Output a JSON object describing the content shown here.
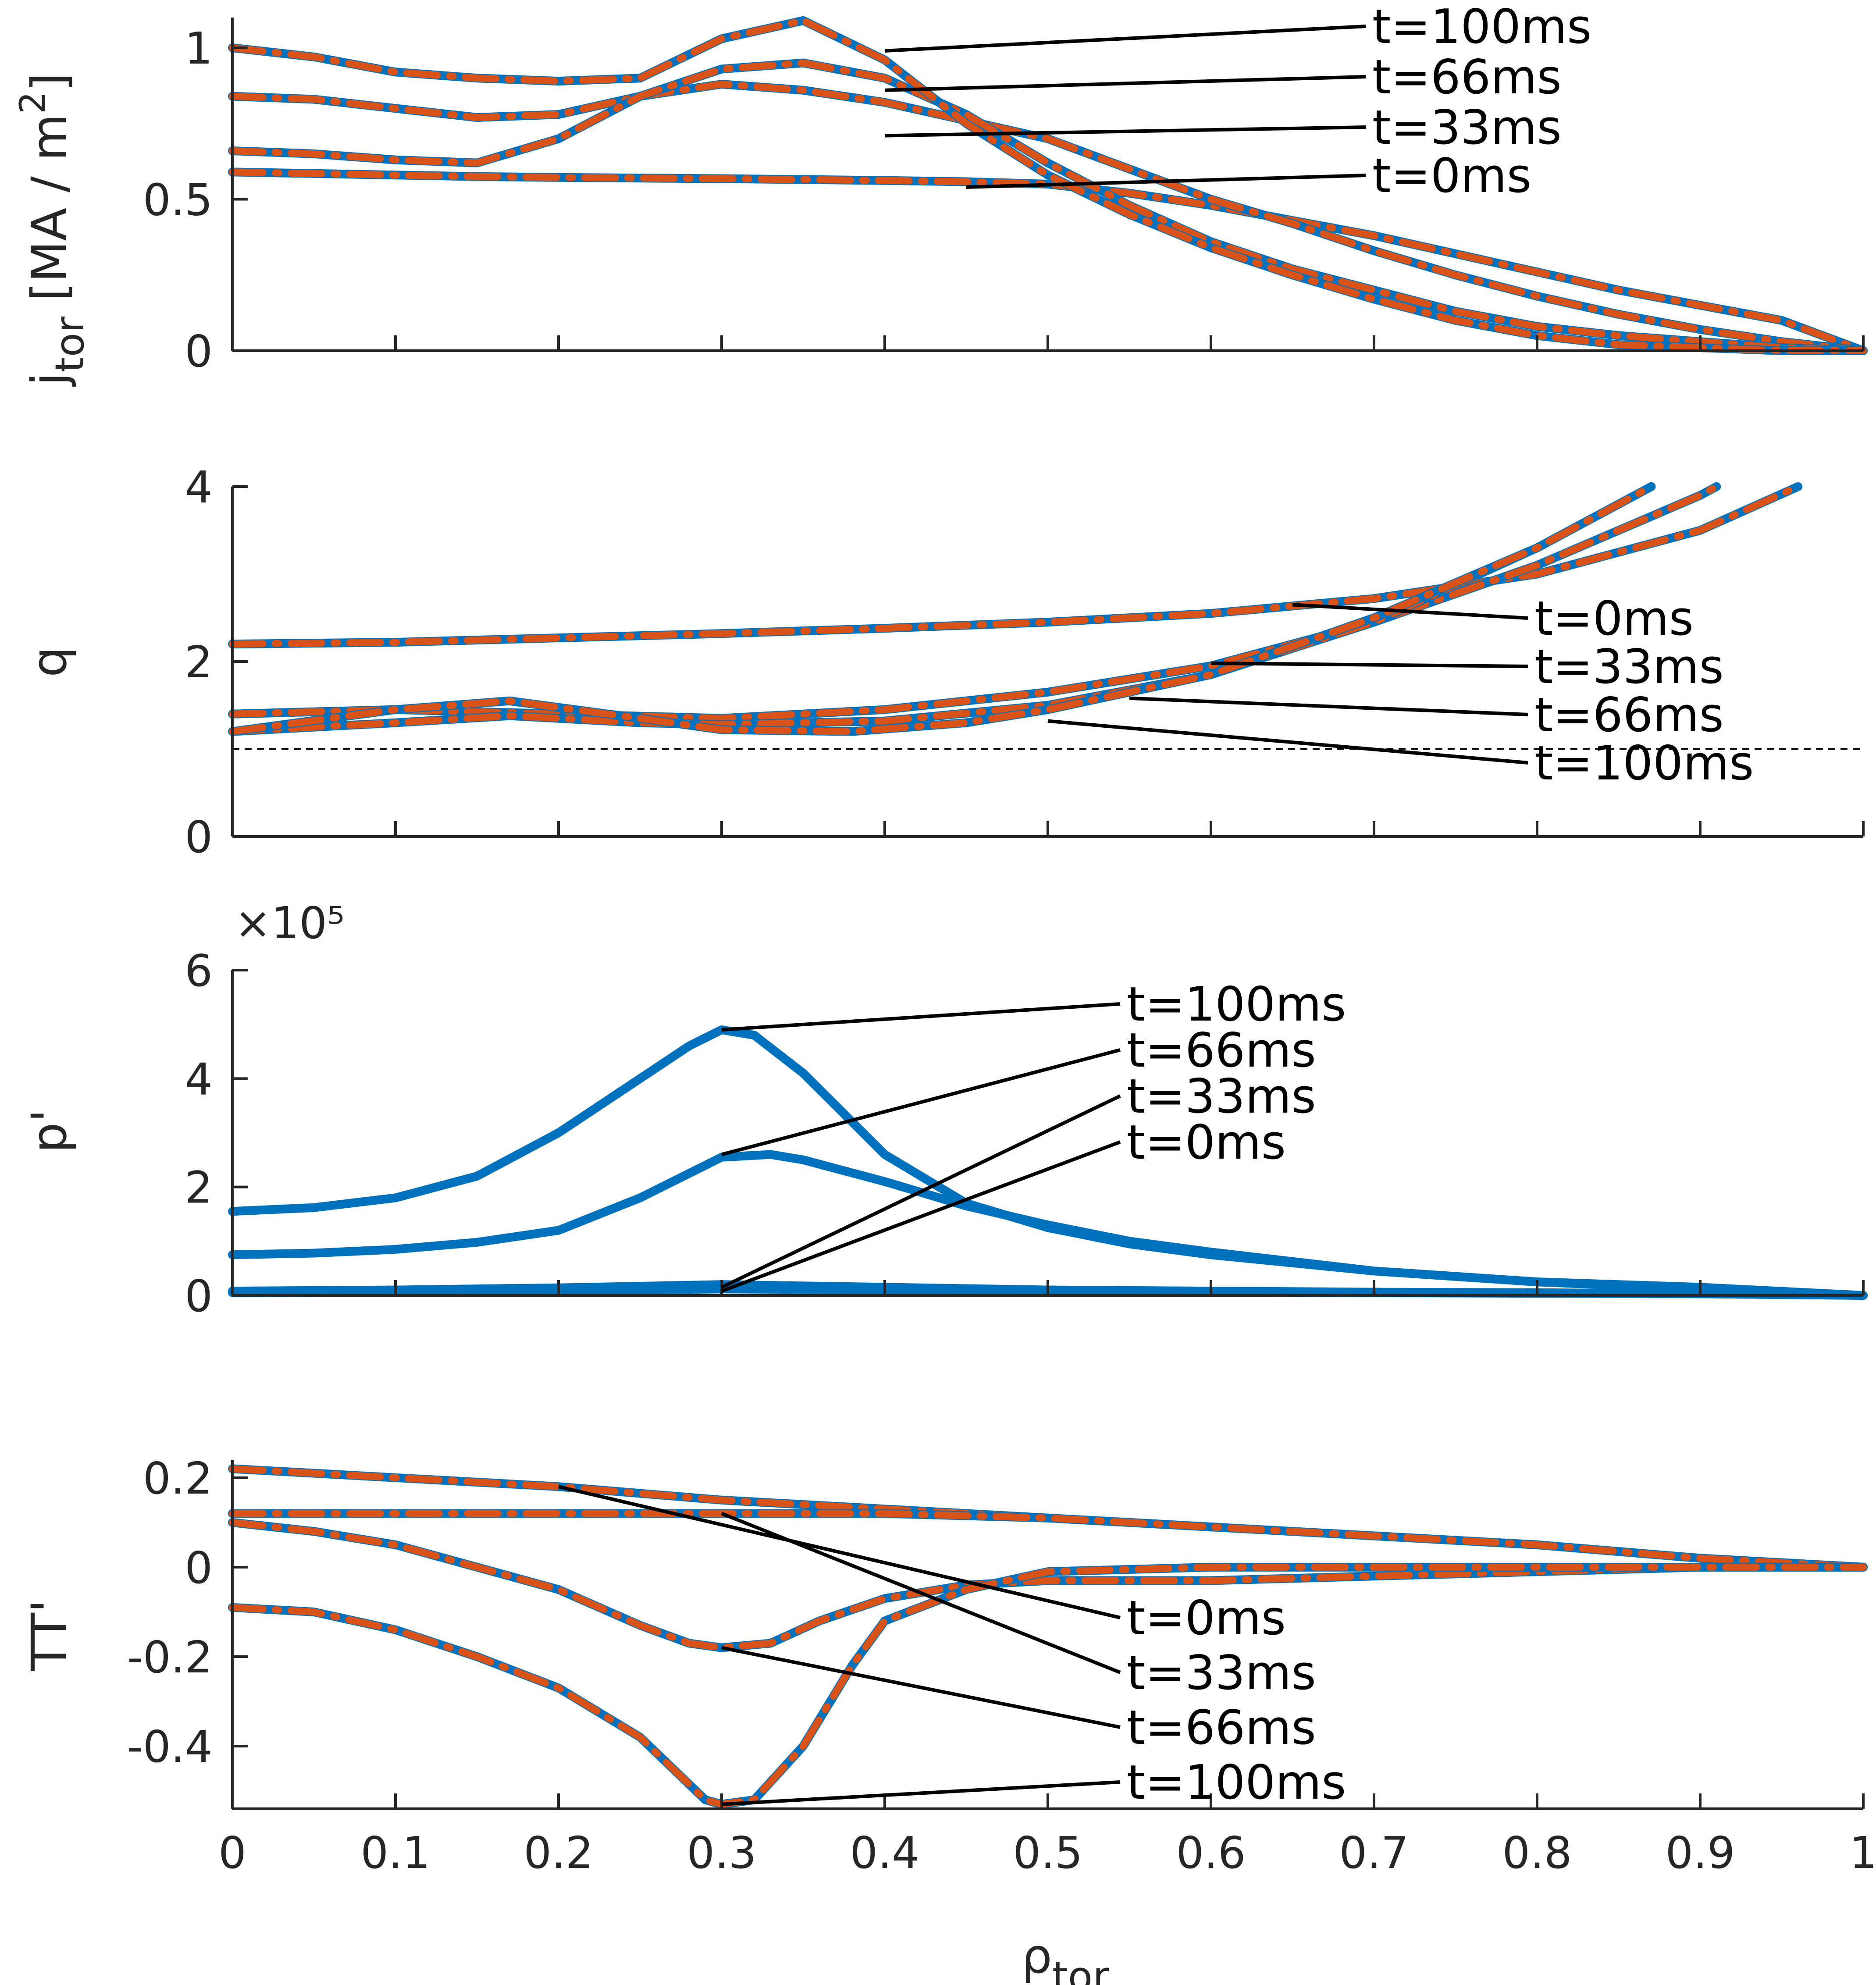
{
  "chart_data": [
    {
      "type": "line",
      "ylabel": "j_tor [MA / m^2]",
      "ylabel_parts": {
        "main": "j",
        "sub": "tor",
        "rest": " [MA / m",
        "sup": "2",
        "end": "]"
      },
      "xlim": [
        0,
        1
      ],
      "ylim": [
        0,
        1.1
      ],
      "yticks": [
        "0",
        "0.5",
        "1"
      ],
      "ytick_values": [
        0,
        0.5,
        1
      ],
      "series": [
        {
          "name": "t=0ms",
          "x": [
            0,
            0.05,
            0.1,
            0.15,
            0.2,
            0.25,
            0.3,
            0.35,
            0.4,
            0.45,
            0.5,
            0.55,
            0.6,
            0.65,
            0.7,
            0.75,
            0.8,
            0.85,
            0.9,
            0.95,
            1.0
          ],
          "y": [
            0.59,
            0.585,
            0.58,
            0.575,
            0.572,
            0.57,
            0.568,
            0.565,
            0.562,
            0.558,
            0.55,
            0.52,
            0.48,
            0.43,
            0.38,
            0.32,
            0.26,
            0.2,
            0.15,
            0.1,
            0.0
          ]
        },
        {
          "name": "t=33ms",
          "x": [
            0,
            0.05,
            0.1,
            0.15,
            0.2,
            0.25,
            0.3,
            0.35,
            0.4,
            0.45,
            0.5,
            0.55,
            0.6,
            0.65,
            0.7,
            0.75,
            0.8,
            0.85,
            0.9,
            0.95,
            1.0
          ],
          "y": [
            0.84,
            0.83,
            0.8,
            0.77,
            0.78,
            0.84,
            0.88,
            0.86,
            0.82,
            0.76,
            0.7,
            0.6,
            0.5,
            0.42,
            0.33,
            0.25,
            0.18,
            0.12,
            0.07,
            0.03,
            0.0
          ]
        },
        {
          "name": "t=66ms",
          "x": [
            0,
            0.05,
            0.1,
            0.15,
            0.2,
            0.25,
            0.3,
            0.35,
            0.4,
            0.45,
            0.5,
            0.55,
            0.6,
            0.65,
            0.7,
            0.75,
            0.8,
            0.85,
            0.9,
            0.95,
            1.0
          ],
          "y": [
            0.66,
            0.65,
            0.63,
            0.62,
            0.7,
            0.84,
            0.93,
            0.95,
            0.9,
            0.78,
            0.62,
            0.48,
            0.36,
            0.27,
            0.2,
            0.13,
            0.08,
            0.05,
            0.03,
            0.01,
            0.0
          ]
        },
        {
          "name": "t=100ms",
          "x": [
            0,
            0.05,
            0.1,
            0.15,
            0.2,
            0.25,
            0.3,
            0.35,
            0.4,
            0.45,
            0.5,
            0.55,
            0.6,
            0.65,
            0.7,
            0.75,
            0.8,
            0.85,
            0.9,
            0.95,
            1.0
          ],
          "y": [
            1.0,
            0.97,
            0.92,
            0.9,
            0.89,
            0.9,
            1.03,
            1.09,
            0.96,
            0.75,
            0.58,
            0.45,
            0.34,
            0.25,
            0.17,
            0.1,
            0.05,
            0.02,
            0.01,
            0.0,
            0.0
          ]
        }
      ],
      "annotations": [
        {
          "text": "t=100ms",
          "anchor": [
            0.4,
            0.99
          ]
        },
        {
          "text": "t=66ms",
          "anchor": [
            0.4,
            0.86
          ]
        },
        {
          "text": "t=33ms",
          "anchor": [
            0.4,
            0.71
          ]
        },
        {
          "text": "t=0ms",
          "anchor": [
            0.45,
            0.54
          ]
        }
      ]
    },
    {
      "type": "line",
      "ylabel": "q",
      "xlim": [
        0,
        1
      ],
      "ylim": [
        0,
        4
      ],
      "yticks": [
        "0",
        "2",
        "4"
      ],
      "ytick_values": [
        0,
        2,
        4
      ],
      "reference_line": {
        "y": 1,
        "style": "dashed"
      },
      "series": [
        {
          "name": "t=0ms",
          "x": [
            0,
            0.1,
            0.2,
            0.3,
            0.4,
            0.5,
            0.6,
            0.7,
            0.8,
            0.9,
            0.96
          ],
          "y": [
            2.2,
            2.22,
            2.27,
            2.32,
            2.38,
            2.45,
            2.55,
            2.72,
            3.0,
            3.5,
            4.0
          ]
        },
        {
          "name": "t=33ms",
          "x": [
            0,
            0.1,
            0.2,
            0.3,
            0.4,
            0.5,
            0.6,
            0.7,
            0.8,
            0.9,
            0.91
          ],
          "y": [
            1.4,
            1.45,
            1.4,
            1.35,
            1.45,
            1.65,
            1.95,
            2.45,
            3.1,
            3.9,
            4.0
          ]
        },
        {
          "name": "t=66ms",
          "x": [
            0,
            0.1,
            0.17,
            0.25,
            0.3,
            0.4,
            0.5,
            0.6,
            0.7,
            0.8,
            0.87
          ],
          "y": [
            1.2,
            1.3,
            1.38,
            1.3,
            1.28,
            1.32,
            1.5,
            1.85,
            2.45,
            3.3,
            4.0
          ]
        },
        {
          "name": "t=100ms",
          "x": [
            0,
            0.1,
            0.17,
            0.25,
            0.3,
            0.38,
            0.45,
            0.5,
            0.6,
            0.7,
            0.8,
            0.87
          ],
          "y": [
            1.2,
            1.45,
            1.55,
            1.35,
            1.22,
            1.2,
            1.3,
            1.45,
            1.85,
            2.5,
            3.3,
            4.0
          ]
        }
      ],
      "annotations": [
        {
          "text": "t=0ms",
          "anchor": [
            0.65,
            2.65
          ]
        },
        {
          "text": "t=33ms",
          "anchor": [
            0.6,
            1.98
          ]
        },
        {
          "text": "t=66ms",
          "anchor": [
            0.55,
            1.58
          ]
        },
        {
          "text": "t=100ms",
          "anchor": [
            0.5,
            1.32
          ]
        }
      ]
    },
    {
      "type": "line",
      "ylabel": "p'",
      "exponent_label": "×10⁵",
      "xlim": [
        0,
        1
      ],
      "ylim": [
        0,
        6
      ],
      "yticks": [
        "0",
        "2",
        "4",
        "6"
      ],
      "ytick_values": [
        0,
        2,
        4,
        6
      ],
      "series": [
        {
          "name": "t=0ms",
          "x": [
            0,
            0.1,
            0.2,
            0.3,
            0.4,
            0.5,
            0.6,
            0.7,
            0.8,
            0.9,
            1.0
          ],
          "y": [
            0.05,
            0.06,
            0.08,
            0.12,
            0.1,
            0.08,
            0.06,
            0.05,
            0.04,
            0.03,
            0.0
          ]
        },
        {
          "name": "t=33ms",
          "x": [
            0,
            0.1,
            0.2,
            0.3,
            0.4,
            0.5,
            0.6,
            0.7,
            0.8,
            0.9,
            1.0
          ],
          "y": [
            0.08,
            0.1,
            0.14,
            0.2,
            0.15,
            0.1,
            0.08,
            0.06,
            0.05,
            0.03,
            0.0
          ]
        },
        {
          "name": "t=66ms",
          "x": [
            0,
            0.05,
            0.1,
            0.15,
            0.2,
            0.25,
            0.3,
            0.33,
            0.35,
            0.4,
            0.45,
            0.5,
            0.55,
            0.6,
            0.7,
            0.8,
            0.9,
            1.0
          ],
          "y": [
            0.75,
            0.78,
            0.85,
            0.98,
            1.2,
            1.8,
            2.55,
            2.6,
            2.5,
            2.1,
            1.65,
            1.3,
            1.0,
            0.8,
            0.45,
            0.25,
            0.12,
            0.0
          ]
        },
        {
          "name": "t=100ms",
          "x": [
            0,
            0.05,
            0.1,
            0.15,
            0.2,
            0.22,
            0.25,
            0.28,
            0.3,
            0.32,
            0.35,
            0.4,
            0.45,
            0.5,
            0.55,
            0.6,
            0.7,
            0.8,
            0.9,
            1.0
          ],
          "y": [
            1.55,
            1.62,
            1.8,
            2.2,
            3.0,
            3.4,
            4.0,
            4.6,
            4.9,
            4.8,
            4.1,
            2.6,
            1.7,
            1.25,
            0.95,
            0.75,
            0.45,
            0.25,
            0.15,
            0.0
          ]
        }
      ],
      "annotations": [
        {
          "text": "t=100ms",
          "anchor": [
            0.3,
            4.9
          ]
        },
        {
          "text": "t=66ms",
          "anchor": [
            0.3,
            2.6
          ]
        },
        {
          "text": "t=33ms",
          "anchor": [
            0.3,
            0.15
          ]
        },
        {
          "text": "t=0ms",
          "anchor": [
            0.3,
            0.08
          ]
        }
      ]
    },
    {
      "type": "line",
      "ylabel": "TT'",
      "xlabel": "ρ_tor",
      "xlabel_parts": {
        "main": "ρ",
        "sub": "tor"
      },
      "xlim": [
        0,
        1
      ],
      "ylim": [
        -0.54,
        0.24
      ],
      "xticks": [
        "0",
        "0.1",
        "0.2",
        "0.3",
        "0.4",
        "0.5",
        "0.6",
        "0.7",
        "0.8",
        "0.9",
        "1"
      ],
      "xtick_values": [
        0,
        0.1,
        0.2,
        0.3,
        0.4,
        0.5,
        0.6,
        0.7,
        0.8,
        0.9,
        1.0
      ],
      "yticks": [
        "-0.4",
        "-0.2",
        "0",
        "0.2"
      ],
      "ytick_values": [
        -0.4,
        -0.2,
        0,
        0.2
      ],
      "series": [
        {
          "name": "t=0ms",
          "x": [
            0,
            0.1,
            0.2,
            0.3,
            0.4,
            0.5,
            0.6,
            0.7,
            0.8,
            0.9,
            1.0
          ],
          "y": [
            0.22,
            0.2,
            0.18,
            0.15,
            0.13,
            0.11,
            0.09,
            0.07,
            0.05,
            0.02,
            0.0
          ]
        },
        {
          "name": "t=33ms",
          "x": [
            0,
            0.1,
            0.2,
            0.3,
            0.4,
            0.5,
            0.6,
            0.7,
            0.8,
            0.9,
            1.0
          ],
          "y": [
            0.12,
            0.12,
            0.12,
            0.12,
            0.12,
            0.11,
            0.09,
            0.07,
            0.05,
            0.02,
            0.0
          ]
        },
        {
          "name": "t=66ms",
          "x": [
            0,
            0.05,
            0.1,
            0.15,
            0.2,
            0.25,
            0.28,
            0.3,
            0.33,
            0.36,
            0.4,
            0.45,
            0.5,
            0.6,
            0.7,
            0.8,
            0.9,
            1.0
          ],
          "y": [
            0.1,
            0.08,
            0.05,
            0.0,
            -0.05,
            -0.13,
            -0.17,
            -0.18,
            -0.17,
            -0.12,
            -0.07,
            -0.04,
            -0.03,
            -0.03,
            -0.02,
            -0.01,
            0.0,
            0.0
          ]
        },
        {
          "name": "t=100ms",
          "x": [
            0,
            0.05,
            0.1,
            0.15,
            0.2,
            0.25,
            0.27,
            0.29,
            0.3,
            0.32,
            0.35,
            0.38,
            0.4,
            0.45,
            0.5,
            0.6,
            0.7,
            0.8,
            0.9,
            1.0
          ],
          "y": [
            -0.09,
            -0.1,
            -0.14,
            -0.2,
            -0.27,
            -0.38,
            -0.45,
            -0.52,
            -0.53,
            -0.52,
            -0.4,
            -0.22,
            -0.12,
            -0.05,
            -0.01,
            0.0,
            0.0,
            0.0,
            0.0,
            0.0
          ]
        }
      ],
      "annotations": [
        {
          "text": "t=0ms",
          "anchor": [
            0.2,
            0.18
          ]
        },
        {
          "text": "t=33ms",
          "anchor": [
            0.3,
            0.12
          ]
        },
        {
          "text": "t=66ms",
          "anchor": [
            0.3,
            -0.18
          ]
        },
        {
          "text": "t=100ms",
          "anchor": [
            0.3,
            -0.53
          ]
        }
      ]
    }
  ],
  "colors": {
    "blue": "#0072BD",
    "orange": "#D95319",
    "axis": "#262626",
    "ann": "#000000",
    "ref": "#000000"
  }
}
